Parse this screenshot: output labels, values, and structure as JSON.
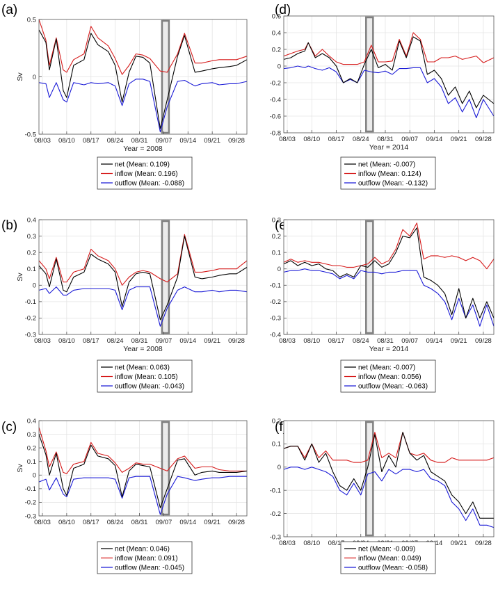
{
  "figure": {
    "colors": {
      "net": "#000000",
      "inflow": "#d61a1a",
      "outflow": "#1a1ad6",
      "shade": "#e6e6e6",
      "shade_edge": "#808080",
      "grid": "#e4e4e4"
    }
  },
  "chart_data": [
    {
      "panel": "(a)",
      "type": "line",
      "xlabel": "Year = 2008",
      "ylabel": "Sv",
      "xlim": [
        0,
        60
      ],
      "ylim": [
        -0.5,
        0.5
      ],
      "yticks": [
        -0.5,
        0,
        0.5
      ],
      "ytick_labels": [
        "-0.5",
        "0",
        "0.5"
      ],
      "xticks": [
        1,
        8,
        15,
        22,
        29,
        36,
        43,
        50,
        57
      ],
      "xtick_labels": [
        "08/03",
        "08/10",
        "08/17",
        "08/24",
        "08/31",
        "09/07",
        "09/14",
        "09/21",
        "09/28"
      ],
      "shade": [
        35.5,
        37.5
      ],
      "legend": [
        "net (Mean: 0.109)",
        "inflow (Mean: 0.196)",
        "outflow (Mean: -0.088)"
      ],
      "x": [
        0,
        2,
        3,
        5,
        7,
        8,
        10,
        13,
        15,
        17,
        20,
        22,
        24,
        26,
        28,
        30,
        32,
        35,
        37,
        40,
        42,
        45,
        47,
        50,
        52,
        55,
        57,
        60
      ],
      "series": [
        {
          "name": "net",
          "values": [
            0.41,
            0.3,
            0.06,
            0.33,
            -0.12,
            -0.18,
            0.1,
            0.15,
            0.38,
            0.28,
            0.22,
            0.1,
            -0.22,
            0.04,
            0.18,
            0.17,
            0.12,
            -0.45,
            -0.2,
            0.18,
            0.36,
            0.04,
            0.05,
            0.07,
            0.08,
            0.09,
            0.1,
            0.15
          ]
        },
        {
          "name": "inflow",
          "values": [
            0.5,
            0.32,
            0.1,
            0.34,
            0.06,
            0.04,
            0.15,
            0.2,
            0.44,
            0.34,
            0.27,
            0.16,
            0.02,
            0.1,
            0.2,
            0.19,
            0.16,
            0.05,
            0.04,
            0.2,
            0.38,
            0.12,
            0.12,
            0.14,
            0.15,
            0.15,
            0.15,
            0.18
          ]
        },
        {
          "name": "outflow",
          "values": [
            -0.05,
            -0.06,
            -0.18,
            -0.05,
            -0.2,
            -0.22,
            -0.05,
            -0.07,
            -0.05,
            -0.06,
            -0.05,
            -0.08,
            -0.25,
            -0.06,
            -0.02,
            -0.02,
            -0.04,
            -0.48,
            -0.26,
            -0.04,
            -0.03,
            -0.08,
            -0.06,
            -0.05,
            -0.07,
            -0.06,
            -0.06,
            -0.04
          ]
        }
      ]
    },
    {
      "panel": "(b)",
      "type": "line",
      "xlabel": "Year = 2008",
      "ylabel": "Sv",
      "xlim": [
        0,
        60
      ],
      "ylim": [
        -0.3,
        0.4
      ],
      "yticks": [
        -0.3,
        -0.2,
        -0.1,
        0,
        0.1,
        0.2,
        0.3,
        0.4
      ],
      "ytick_labels": [
        "-0.3",
        "-0.2",
        "-0.1",
        "0",
        "0.1",
        "0.2",
        "0.3",
        "0.4"
      ],
      "xticks": [
        1,
        8,
        15,
        22,
        29,
        36,
        43,
        50,
        57
      ],
      "xtick_labels": [
        "08/03",
        "08/10",
        "08/17",
        "08/24",
        "08/31",
        "09/07",
        "09/14",
        "09/21",
        "09/28"
      ],
      "shade": [
        35.5,
        37.5
      ],
      "legend": [
        "net (Mean: 0.063)",
        "inflow (Mean: 0.105)",
        "outflow (Mean: -0.043)"
      ],
      "x": [
        0,
        2,
        3,
        5,
        7,
        8,
        10,
        13,
        15,
        17,
        20,
        22,
        24,
        26,
        28,
        30,
        32,
        35,
        37,
        40,
        42,
        45,
        47,
        50,
        52,
        55,
        57,
        60
      ],
      "series": [
        {
          "name": "net",
          "values": [
            0.12,
            0.07,
            -0.01,
            0.16,
            -0.03,
            -0.04,
            0.05,
            0.08,
            0.19,
            0.16,
            0.13,
            0.08,
            -0.13,
            0.02,
            0.07,
            0.08,
            0.07,
            -0.21,
            -0.12,
            0.05,
            0.3,
            0.05,
            0.04,
            0.05,
            0.06,
            0.07,
            0.07,
            0.11
          ]
        },
        {
          "name": "inflow",
          "values": [
            0.15,
            0.1,
            0.04,
            0.17,
            0.02,
            0.02,
            0.08,
            0.1,
            0.22,
            0.18,
            0.15,
            0.1,
            0.0,
            0.05,
            0.08,
            0.09,
            0.08,
            0.04,
            0.02,
            0.07,
            0.31,
            0.08,
            0.08,
            0.09,
            0.1,
            0.1,
            0.1,
            0.15
          ]
        },
        {
          "name": "outflow",
          "values": [
            -0.03,
            -0.02,
            -0.05,
            -0.01,
            -0.06,
            -0.06,
            -0.03,
            -0.02,
            -0.02,
            -0.02,
            -0.02,
            -0.03,
            -0.15,
            -0.03,
            -0.01,
            -0.01,
            -0.01,
            -0.25,
            -0.14,
            -0.03,
            -0.01,
            -0.04,
            -0.04,
            -0.03,
            -0.04,
            -0.03,
            -0.03,
            -0.04
          ]
        }
      ]
    },
    {
      "panel": "(c)",
      "type": "line",
      "xlabel": "",
      "ylabel": "Sv",
      "xlim": [
        0,
        60
      ],
      "ylim": [
        -0.3,
        0.4
      ],
      "yticks": [
        -0.3,
        -0.2,
        -0.1,
        0,
        0.1,
        0.2,
        0.3,
        0.4
      ],
      "ytick_labels": [
        "-0.3",
        "-0.2",
        "-0.1",
        "0",
        "0.1",
        "0.2",
        "0.3",
        "0.4"
      ],
      "xticks": [
        1,
        8,
        15,
        22,
        29,
        36,
        43,
        50,
        57
      ],
      "xtick_labels": [
        "08/03",
        "08/10",
        "08/17",
        "08/24",
        "08/31",
        "09/07",
        "09/14",
        "09/21",
        "09/28"
      ],
      "shade": [
        35.5,
        37.5
      ],
      "legend": [
        "net (Mean: 0.046)",
        "inflow (Mean: 0.091)",
        "outflow (Mean: -0.045)"
      ],
      "x": [
        0,
        2,
        3,
        5,
        7,
        8,
        10,
        13,
        15,
        17,
        20,
        22,
        24,
        26,
        28,
        30,
        32,
        35,
        37,
        40,
        42,
        45,
        47,
        50,
        52,
        55,
        57,
        60
      ],
      "series": [
        {
          "name": "net",
          "values": [
            0.3,
            0.15,
            0.0,
            0.16,
            -0.1,
            -0.15,
            0.05,
            0.08,
            0.22,
            0.14,
            0.12,
            0.07,
            -0.16,
            0.03,
            0.08,
            0.07,
            0.06,
            -0.24,
            -0.1,
            0.11,
            0.12,
            0.0,
            0.02,
            0.03,
            0.02,
            0.02,
            0.02,
            0.03
          ]
        },
        {
          "name": "inflow",
          "values": [
            0.35,
            0.18,
            0.06,
            0.17,
            0.02,
            0.01,
            0.08,
            0.1,
            0.24,
            0.16,
            0.14,
            0.09,
            0.02,
            0.05,
            0.09,
            0.08,
            0.08,
            0.05,
            0.03,
            0.12,
            0.14,
            0.05,
            0.06,
            0.06,
            0.04,
            0.03,
            0.03,
            0.03
          ]
        },
        {
          "name": "outflow",
          "values": [
            -0.05,
            -0.03,
            -0.11,
            -0.02,
            -0.14,
            -0.16,
            -0.03,
            -0.02,
            -0.02,
            -0.02,
            -0.02,
            -0.03,
            -0.17,
            -0.02,
            -0.01,
            -0.01,
            -0.01,
            -0.29,
            -0.14,
            -0.01,
            -0.02,
            -0.04,
            -0.03,
            -0.02,
            -0.02,
            -0.01,
            -0.01,
            -0.01
          ]
        }
      ]
    },
    {
      "panel": "(d)",
      "type": "line",
      "xlabel": "Year = 2014",
      "ylabel": "",
      "xlim": [
        0,
        60
      ],
      "ylim": [
        -0.8,
        0.6
      ],
      "yticks": [
        -0.8,
        -0.6,
        -0.4,
        -0.2,
        0,
        0.2,
        0.4,
        0.6
      ],
      "ytick_labels": [
        "-0.8",
        "-0.6",
        "-0.4",
        "-0.2",
        "0",
        "0.2",
        "0.4",
        "0.6"
      ],
      "xticks": [
        1,
        8,
        15,
        22,
        29,
        36,
        43,
        50,
        57
      ],
      "xtick_labels": [
        "08/03",
        "08/10",
        "08/17",
        "08/24",
        "08/31",
        "09/07",
        "09/14",
        "09/21",
        "09/28"
      ],
      "shade": [
        23.5,
        25.5
      ],
      "legend": [
        "net (Mean: -0.007)",
        "inflow (Mean: 0.124)",
        "outflow (Mean: -0.132)"
      ],
      "x": [
        0,
        2,
        4,
        6,
        7,
        9,
        11,
        13,
        15,
        17,
        19,
        21,
        23,
        25,
        27,
        29,
        31,
        33,
        35,
        37,
        39,
        41,
        43,
        45,
        47,
        49,
        51,
        53,
        55,
        57,
        60
      ],
      "series": [
        {
          "name": "net",
          "values": [
            0.08,
            0.1,
            0.15,
            0.18,
            0.28,
            0.1,
            0.15,
            0.1,
            0.0,
            -0.2,
            -0.15,
            -0.2,
            0.02,
            0.2,
            -0.02,
            0.02,
            -0.05,
            0.3,
            0.1,
            0.35,
            0.3,
            -0.1,
            -0.05,
            -0.15,
            -0.35,
            -0.25,
            -0.45,
            -0.3,
            -0.5,
            -0.35,
            -0.45
          ]
        },
        {
          "name": "inflow",
          "values": [
            0.12,
            0.15,
            0.18,
            0.2,
            0.28,
            0.12,
            0.2,
            0.12,
            0.05,
            0.02,
            0.02,
            0.02,
            0.05,
            0.25,
            0.05,
            0.05,
            0.06,
            0.32,
            0.12,
            0.4,
            0.32,
            0.05,
            0.05,
            0.1,
            0.1,
            0.12,
            0.08,
            0.1,
            0.12,
            0.04,
            0.1
          ]
        },
        {
          "name": "outflow",
          "values": [
            -0.03,
            -0.02,
            0.0,
            -0.02,
            0.0,
            -0.03,
            -0.05,
            -0.02,
            -0.07,
            -0.2,
            -0.16,
            -0.2,
            -0.05,
            -0.07,
            -0.08,
            -0.06,
            -0.1,
            -0.03,
            -0.03,
            -0.02,
            -0.02,
            -0.2,
            -0.15,
            -0.25,
            -0.45,
            -0.38,
            -0.55,
            -0.4,
            -0.62,
            -0.4,
            -0.6
          ]
        }
      ]
    },
    {
      "panel": "(e)",
      "type": "line",
      "xlabel": "Year = 2014",
      "ylabel": "",
      "xlim": [
        0,
        60
      ],
      "ylim": [
        -0.4,
        0.3
      ],
      "yticks": [
        -0.4,
        -0.3,
        -0.2,
        -0.1,
        0,
        0.1,
        0.2,
        0.3
      ],
      "ytick_labels": [
        "-0.4",
        "-0.3",
        "-0.2",
        "-0.1",
        "0",
        "0.1",
        "0.2",
        "0.3"
      ],
      "xticks": [
        1,
        8,
        15,
        22,
        29,
        36,
        43,
        50,
        57
      ],
      "xtick_labels": [
        "08/03",
        "08/10",
        "08/17",
        "08/24",
        "08/31",
        "09/07",
        "09/14",
        "09/21",
        "09/28"
      ],
      "shade": [
        23.5,
        25.5
      ],
      "legend": [
        "net (Mean: -0.007)",
        "inflow (Mean: 0.056)",
        "outflow (Mean: -0.063)"
      ],
      "x": [
        0,
        2,
        4,
        6,
        8,
        10,
        12,
        14,
        16,
        18,
        20,
        22,
        24,
        26,
        28,
        30,
        32,
        34,
        36,
        38,
        40,
        42,
        44,
        46,
        48,
        50,
        52,
        54,
        56,
        58,
        60
      ],
      "series": [
        {
          "name": "net",
          "values": [
            0.03,
            0.05,
            0.02,
            0.04,
            0.02,
            0.03,
            0.0,
            -0.01,
            -0.05,
            -0.03,
            -0.05,
            0.02,
            0.01,
            0.05,
            0.01,
            0.03,
            0.1,
            0.2,
            0.19,
            0.25,
            -0.05,
            -0.07,
            -0.1,
            -0.15,
            -0.28,
            -0.12,
            -0.3,
            -0.18,
            -0.3,
            -0.2,
            -0.3
          ]
        },
        {
          "name": "inflow",
          "values": [
            0.04,
            0.06,
            0.04,
            0.05,
            0.04,
            0.04,
            0.03,
            0.02,
            0.02,
            0.01,
            0.01,
            0.02,
            0.03,
            0.07,
            0.03,
            0.05,
            0.12,
            0.24,
            0.2,
            0.28,
            0.06,
            0.08,
            0.08,
            0.07,
            0.08,
            0.07,
            0.05,
            0.07,
            0.05,
            0.0,
            0.06
          ]
        },
        {
          "name": "outflow",
          "values": [
            -0.02,
            -0.01,
            -0.01,
            0.0,
            -0.01,
            -0.01,
            -0.02,
            -0.03,
            -0.06,
            -0.04,
            -0.06,
            -0.01,
            -0.02,
            -0.02,
            -0.03,
            -0.02,
            -0.02,
            -0.01,
            -0.01,
            -0.01,
            -0.1,
            -0.12,
            -0.15,
            -0.2,
            -0.31,
            -0.18,
            -0.3,
            -0.22,
            -0.35,
            -0.22,
            -0.35
          ]
        }
      ]
    },
    {
      "panel": "(f)",
      "type": "line",
      "xlabel": "Year = 2014",
      "ylabel": "",
      "xlim": [
        0,
        60
      ],
      "ylim": [
        -0.3,
        0.2
      ],
      "yticks": [
        -0.3,
        -0.2,
        -0.1,
        0,
        0.1,
        0.2
      ],
      "ytick_labels": [
        "-0.3",
        "-0.2",
        "-0.1",
        "0",
        "0.1",
        "0.2"
      ],
      "xticks": [
        1,
        8,
        15,
        22,
        29,
        36,
        43,
        50,
        57
      ],
      "xtick_labels": [
        "08/03",
        "08/10",
        "08/17",
        "08/24",
        "08/31",
        "09/07",
        "09/14",
        "09/21",
        "09/28"
      ],
      "shade": [
        23.5,
        25.5
      ],
      "legend": [
        "net (Mean: -0.009)",
        "inflow (Mean: 0.049)",
        "outflow (Mean: -0.058)"
      ],
      "x": [
        0,
        2,
        4,
        6,
        8,
        10,
        12,
        14,
        16,
        18,
        20,
        22,
        24,
        26,
        28,
        30,
        32,
        34,
        36,
        38,
        40,
        42,
        44,
        46,
        48,
        50,
        52,
        54,
        56,
        58,
        60
      ],
      "series": [
        {
          "name": "net",
          "values": [
            0.08,
            0.09,
            0.09,
            0.03,
            0.1,
            0.02,
            0.06,
            -0.02,
            -0.08,
            -0.1,
            -0.05,
            -0.1,
            0.0,
            0.14,
            -0.02,
            0.05,
            0.0,
            0.15,
            0.06,
            0.03,
            0.05,
            -0.02,
            -0.04,
            -0.06,
            -0.12,
            -0.15,
            -0.2,
            -0.15,
            -0.22,
            -0.22,
            -0.22
          ]
        },
        {
          "name": "inflow",
          "values": [
            0.08,
            0.09,
            0.09,
            0.04,
            0.1,
            0.04,
            0.07,
            0.03,
            0.03,
            0.03,
            0.02,
            0.02,
            0.03,
            0.15,
            0.04,
            0.06,
            0.04,
            0.15,
            0.06,
            0.05,
            0.06,
            0.03,
            0.02,
            0.02,
            0.04,
            0.03,
            0.03,
            0.03,
            0.03,
            0.03,
            0.04
          ]
        },
        {
          "name": "outflow",
          "values": [
            -0.01,
            0.0,
            0.0,
            -0.01,
            0.0,
            -0.01,
            -0.02,
            -0.04,
            -0.1,
            -0.12,
            -0.07,
            -0.12,
            -0.03,
            -0.02,
            -0.06,
            -0.01,
            -0.03,
            -0.01,
            -0.01,
            -0.02,
            -0.01,
            -0.05,
            -0.06,
            -0.08,
            -0.15,
            -0.18,
            -0.23,
            -0.18,
            -0.25,
            -0.25,
            -0.26
          ]
        }
      ]
    }
  ]
}
